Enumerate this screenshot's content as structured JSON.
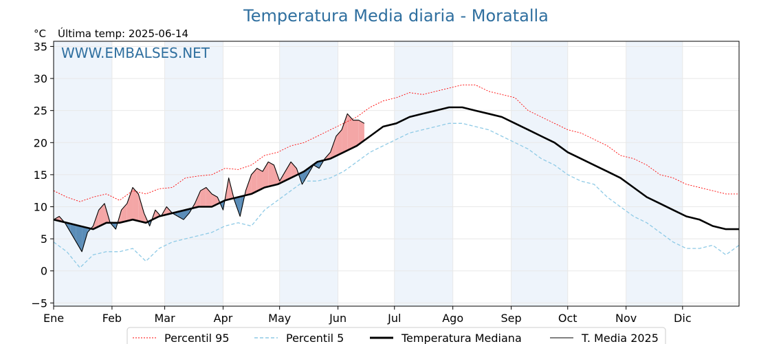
{
  "chart_data": {
    "type": "line",
    "title": "Temperatura Media diaria - Moratalla",
    "ylabel": "°C",
    "last_temp_label": "Última temp: 2025-06-14",
    "watermark": "WWW.EMBALSES.NET",
    "ylim": [
      -5.5,
      35.8
    ],
    "yticks": [
      -5,
      0,
      5,
      10,
      15,
      20,
      25,
      30,
      35
    ],
    "xlim": [
      1,
      365
    ],
    "months": [
      "Ene",
      "Feb",
      "Mar",
      "Apr",
      "May",
      "Jun",
      "Jul",
      "Ago",
      "Sep",
      "Oct",
      "Nov",
      "Dic"
    ],
    "month_start_days": [
      1,
      32,
      60,
      91,
      121,
      152,
      182,
      213,
      244,
      274,
      305,
      335
    ],
    "grid": true,
    "legend_position": "bottom",
    "colors": {
      "p95": "#ff0000",
      "p5": "#8ecae6",
      "median": "#000000",
      "current": "#000000",
      "above_fill": "#f4a6a6",
      "below_fill": "#5b8db8",
      "shade": "#eef4fb",
      "title": "#2f6f9f"
    },
    "series": [
      {
        "key": "p95",
        "name": "Percentil 95",
        "x": [
          1,
          8,
          15,
          22,
          29,
          36,
          43,
          50,
          57,
          64,
          71,
          78,
          85,
          92,
          99,
          106,
          113,
          120,
          127,
          134,
          141,
          148,
          155,
          162,
          169,
          176,
          183,
          190,
          197,
          204,
          211,
          218,
          225,
          232,
          239,
          246,
          253,
          260,
          267,
          274,
          281,
          288,
          295,
          302,
          309,
          316,
          323,
          330,
          337,
          344,
          351,
          358,
          365
        ],
        "values": [
          12.5,
          11.5,
          10.8,
          11.5,
          12.0,
          11.0,
          12.5,
          12.0,
          12.8,
          13.0,
          14.5,
          14.8,
          15.0,
          16.0,
          15.8,
          16.5,
          18.0,
          18.5,
          19.5,
          20.0,
          21.0,
          22.0,
          23.0,
          24.0,
          25.5,
          26.5,
          27.0,
          27.8,
          27.5,
          28.0,
          28.5,
          29.0,
          29.0,
          28.0,
          27.5,
          27.0,
          25.0,
          24.0,
          23.0,
          22.0,
          21.5,
          20.5,
          19.5,
          18.0,
          17.5,
          16.5,
          15.0,
          14.5,
          13.5,
          13.0,
          12.5,
          12.0,
          12.0
        ]
      },
      {
        "key": "p5",
        "name": "Percentil 5",
        "x": [
          1,
          8,
          15,
          22,
          29,
          36,
          43,
          50,
          57,
          64,
          71,
          78,
          85,
          92,
          99,
          106,
          113,
          120,
          127,
          134,
          141,
          148,
          155,
          162,
          169,
          176,
          183,
          190,
          197,
          204,
          211,
          218,
          225,
          232,
          239,
          246,
          253,
          260,
          267,
          274,
          281,
          288,
          295,
          302,
          309,
          316,
          323,
          330,
          337,
          344,
          351,
          358,
          365
        ],
        "values": [
          4.5,
          3.0,
          0.5,
          2.5,
          3.0,
          3.0,
          3.5,
          1.5,
          3.5,
          4.5,
          5.0,
          5.5,
          6.0,
          7.0,
          7.5,
          7.0,
          9.5,
          11.0,
          12.5,
          14.0,
          14.0,
          14.5,
          15.5,
          17.0,
          18.5,
          19.5,
          20.5,
          21.5,
          22.0,
          22.5,
          23.0,
          23.0,
          22.5,
          22.0,
          21.0,
          20.0,
          19.0,
          17.5,
          16.5,
          15.0,
          14.0,
          13.5,
          11.5,
          10.0,
          8.5,
          7.5,
          6.0,
          4.5,
          3.5,
          3.5,
          4.0,
          2.5,
          4.0
        ]
      },
      {
        "key": "median",
        "name": "Temperatura Mediana",
        "x": [
          1,
          8,
          15,
          22,
          29,
          36,
          43,
          50,
          57,
          64,
          71,
          78,
          85,
          92,
          99,
          106,
          113,
          120,
          127,
          134,
          141,
          148,
          155,
          162,
          169,
          176,
          183,
          190,
          197,
          204,
          211,
          218,
          225,
          232,
          239,
          246,
          253,
          260,
          267,
          274,
          281,
          288,
          295,
          302,
          309,
          316,
          323,
          330,
          337,
          344,
          351,
          358,
          365
        ],
        "values": [
          8.0,
          7.5,
          7.0,
          6.5,
          7.5,
          7.5,
          8.0,
          7.5,
          8.5,
          9.0,
          9.5,
          10.0,
          10.0,
          11.0,
          11.5,
          12.0,
          13.0,
          13.5,
          14.5,
          15.5,
          17.0,
          17.5,
          18.5,
          19.5,
          21.0,
          22.5,
          23.0,
          24.0,
          24.5,
          25.0,
          25.5,
          25.5,
          25.0,
          24.5,
          24.0,
          23.0,
          22.0,
          21.0,
          20.0,
          18.5,
          17.5,
          16.5,
          15.5,
          14.5,
          13.0,
          11.5,
          10.5,
          9.5,
          8.5,
          8.0,
          7.0,
          6.5,
          6.5
        ]
      },
      {
        "key": "current",
        "name": "T. Media 2025",
        "x": [
          1,
          4,
          7,
          10,
          13,
          16,
          19,
          22,
          25,
          28,
          31,
          34,
          37,
          40,
          43,
          46,
          49,
          52,
          55,
          58,
          61,
          64,
          67,
          70,
          73,
          76,
          79,
          82,
          85,
          88,
          91,
          94,
          97,
          100,
          103,
          106,
          109,
          112,
          115,
          118,
          121,
          124,
          127,
          130,
          133,
          136,
          139,
          142,
          145,
          148,
          151,
          154,
          157,
          160,
          163,
          166
        ],
        "values": [
          8.0,
          8.5,
          7.5,
          6.0,
          4.5,
          3.0,
          6.0,
          7.0,
          9.5,
          10.5,
          7.5,
          6.5,
          9.5,
          10.5,
          13.0,
          12.0,
          9.0,
          7.0,
          9.5,
          8.5,
          10.0,
          9.0,
          8.5,
          8.0,
          9.0,
          10.5,
          12.5,
          13.0,
          12.0,
          11.5,
          9.5,
          14.5,
          11.0,
          8.5,
          12.5,
          15.0,
          16.0,
          15.5,
          17.0,
          16.5,
          14.0,
          15.5,
          17.0,
          16.0,
          13.5,
          15.0,
          16.5,
          16.0,
          17.5,
          18.5,
          21.0,
          22.0,
          24.5,
          23.5,
          23.5,
          23.0
        ]
      }
    ]
  }
}
